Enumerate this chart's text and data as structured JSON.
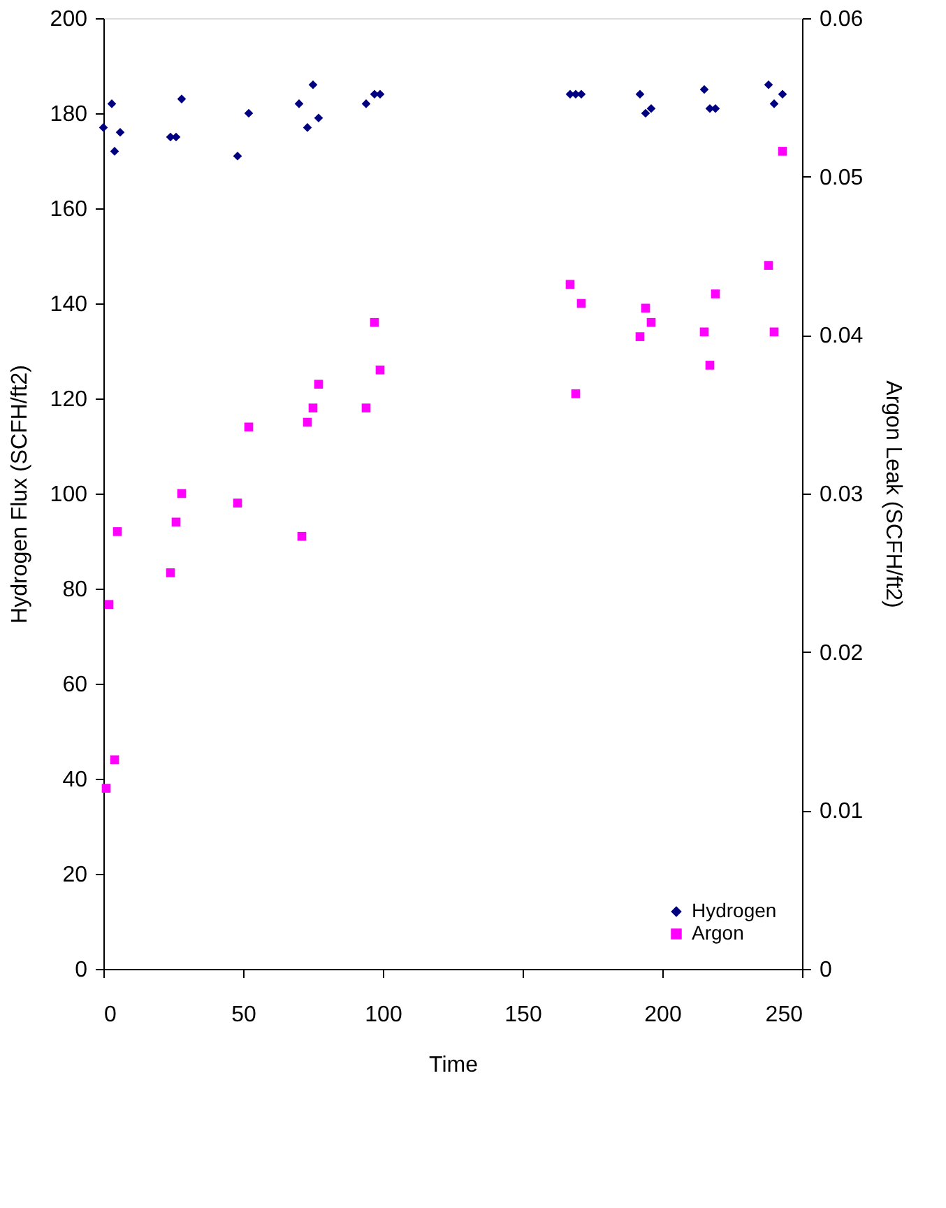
{
  "chart_data": {
    "type": "scatter",
    "xlabel": "Time",
    "ylabel": "Hydrogen Flux (SCFH/ft2)",
    "y2label": "Argon Leak (SCFH/ft2)",
    "xlim": [
      0,
      250
    ],
    "xticks": [
      0,
      50,
      100,
      150,
      200,
      250
    ],
    "ylim": [
      0,
      200
    ],
    "yticks": [
      0,
      20,
      40,
      60,
      80,
      100,
      120,
      140,
      160,
      180,
      200
    ],
    "y2lim": [
      0,
      0.06
    ],
    "y2ticks": [
      0,
      0.01,
      0.02,
      0.03,
      0.04,
      0.05,
      0.06
    ],
    "grid": false,
    "legend": "bottom right",
    "series": [
      {
        "name": "Hydrogen",
        "color": "#000080",
        "marker": "diamond",
        "x": [
          0,
          3,
          4,
          6,
          24,
          26,
          28,
          48,
          52,
          70,
          73,
          75,
          77,
          94,
          97,
          99,
          167,
          169,
          171,
          192,
          194,
          196,
          215,
          217,
          219,
          238,
          240,
          243
        ],
        "values": [
          177,
          182,
          172,
          176,
          175,
          175,
          183,
          171,
          180,
          182,
          177,
          186,
          179,
          182,
          184,
          184,
          184,
          184,
          184,
          184,
          180,
          181,
          185,
          181,
          181,
          186,
          182,
          184
        ]
      },
      {
        "name": "Argon",
        "color": "#ff00ff",
        "marker": "square",
        "axis": "y2",
        "x": [
          1,
          4,
          2,
          5,
          24,
          26,
          28,
          48,
          52,
          71,
          73,
          75,
          77,
          94,
          97,
          99,
          167,
          169,
          171,
          192,
          194,
          196,
          215,
          217,
          219,
          238,
          240,
          243
        ],
        "values": [
          0.0114,
          0.0132,
          0.023,
          0.0276,
          0.025,
          0.0282,
          0.03,
          0.0294,
          0.0342,
          0.0273,
          0.0345,
          0.0354,
          0.0369,
          0.0354,
          0.0408,
          0.0378,
          0.0432,
          0.0363,
          0.042,
          0.0399,
          0.0417,
          0.0408,
          0.0402,
          0.0381,
          0.0426,
          0.0444,
          0.0402,
          0.0516
        ]
      }
    ]
  }
}
